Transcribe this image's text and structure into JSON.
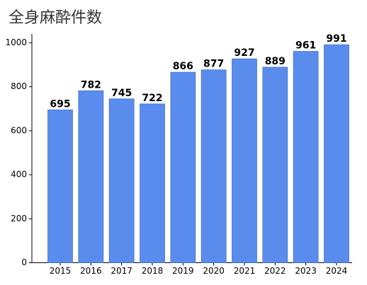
{
  "chart_data": {
    "type": "bar",
    "title": "全身麻酔件数",
    "categories": [
      "2015",
      "2016",
      "2017",
      "2018",
      "2019",
      "2020",
      "2021",
      "2022",
      "2023",
      "2024"
    ],
    "values": [
      695,
      782,
      745,
      722,
      866,
      877,
      927,
      889,
      961,
      991
    ],
    "color": "#5a8ced",
    "ylim": [
      0,
      1040
    ],
    "yticks": [
      0,
      200,
      400,
      600,
      800,
      1000
    ]
  }
}
